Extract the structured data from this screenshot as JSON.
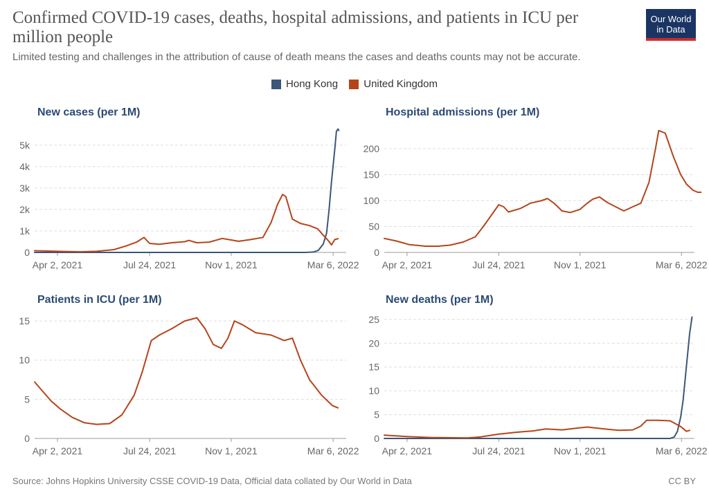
{
  "header": {
    "title": "Confirmed COVID-19 cases, deaths, hospital admissions, and patients in ICU per million people",
    "subtitle": "Limited testing and challenges in the attribution of cause of death means the cases and deaths counts may not be accurate.",
    "logo_line1": "Our World",
    "logo_line2": "in Data"
  },
  "colors": {
    "hong_kong": "#3c5578",
    "united_kingdom": "#b5431a",
    "logo_bg": "#1a3563",
    "logo_bar": "#ce2a2e"
  },
  "legend": [
    {
      "name": "Hong Kong",
      "color": "#3c5578"
    },
    {
      "name": "United Kingdom",
      "color": "#b5431a"
    }
  ],
  "footer": {
    "source": "Source: Johns Hopkins University CSSE COVID-19 Data, Official data collated by Our World in Data",
    "license": "CC BY"
  },
  "chart_data": [
    {
      "type": "line",
      "title": "New cases (per 1M)",
      "x_range": [
        "2021-03-05",
        "2022-03-22"
      ],
      "x_ticks": [
        {
          "date": "2021-04-02",
          "label": "Apr 2, 2021"
        },
        {
          "date": "2021-07-24",
          "label": "Jul 24, 2021"
        },
        {
          "date": "2021-11-01",
          "label": "Nov 1, 2021"
        },
        {
          "date": "2022-03-06",
          "label": "Mar 6, 2022"
        }
      ],
      "ylim": [
        0,
        5800
      ],
      "y_ticks": [
        {
          "value": 0,
          "label": "0"
        },
        {
          "value": 1000,
          "label": "1k"
        },
        {
          "value": 2000,
          "label": "2k"
        },
        {
          "value": 3000,
          "label": "3k"
        },
        {
          "value": 4000,
          "label": "4k"
        },
        {
          "value": 5000,
          "label": "5k"
        }
      ],
      "grid": true,
      "series": [
        {
          "name": "Hong Kong",
          "color": "#3c5578",
          "points": [
            [
              "2021-03-05",
              0
            ],
            [
              "2022-01-31",
              0
            ],
            [
              "2022-02-10",
              20
            ],
            [
              "2022-02-16",
              100
            ],
            [
              "2022-02-22",
              400
            ],
            [
              "2022-02-26",
              900
            ],
            [
              "2022-03-01",
              2000
            ],
            [
              "2022-03-04",
              3300
            ],
            [
              "2022-03-08",
              4800
            ],
            [
              "2022-03-10",
              5650
            ],
            [
              "2022-03-12",
              5750
            ],
            [
              "2022-03-13",
              5680
            ]
          ]
        },
        {
          "name": "United Kingdom",
          "color": "#b5431a",
          "points": [
            [
              "2021-03-05",
              80
            ],
            [
              "2021-04-02",
              50
            ],
            [
              "2021-05-01",
              30
            ],
            [
              "2021-05-20",
              50
            ],
            [
              "2021-06-10",
              130
            ],
            [
              "2021-06-25",
              300
            ],
            [
              "2021-07-08",
              480
            ],
            [
              "2021-07-17",
              700
            ],
            [
              "2021-07-24",
              420
            ],
            [
              "2021-08-05",
              380
            ],
            [
              "2021-08-20",
              450
            ],
            [
              "2021-09-05",
              500
            ],
            [
              "2021-09-10",
              560
            ],
            [
              "2021-09-20",
              450
            ],
            [
              "2021-10-05",
              480
            ],
            [
              "2021-10-21",
              650
            ],
            [
              "2021-11-01",
              580
            ],
            [
              "2021-11-10",
              520
            ],
            [
              "2021-11-25",
              600
            ],
            [
              "2021-12-10",
              700
            ],
            [
              "2021-12-20",
              1400
            ],
            [
              "2021-12-28",
              2250
            ],
            [
              "2022-01-03",
              2700
            ],
            [
              "2022-01-07",
              2600
            ],
            [
              "2022-01-15",
              1550
            ],
            [
              "2022-01-25",
              1350
            ],
            [
              "2022-02-05",
              1250
            ],
            [
              "2022-02-15",
              1100
            ],
            [
              "2022-02-22",
              800
            ],
            [
              "2022-02-28",
              550
            ],
            [
              "2022-03-04",
              350
            ],
            [
              "2022-03-08",
              600
            ],
            [
              "2022-03-12",
              640
            ]
          ]
        }
      ]
    },
    {
      "type": "line",
      "title": "Hospital admissions (per 1M)",
      "x_range": [
        "2021-03-05",
        "2022-03-22"
      ],
      "x_ticks": [
        {
          "date": "2021-04-02",
          "label": "Apr 2, 2021"
        },
        {
          "date": "2021-07-24",
          "label": "Jul 24, 2021"
        },
        {
          "date": "2021-11-01",
          "label": "Nov 1, 2021"
        },
        {
          "date": "2022-03-06",
          "label": "Mar 6, 2022"
        }
      ],
      "ylim": [
        0,
        240
      ],
      "y_ticks": [
        {
          "value": 0,
          "label": "0"
        },
        {
          "value": 50,
          "label": "50"
        },
        {
          "value": 100,
          "label": "100"
        },
        {
          "value": 150,
          "label": "150"
        },
        {
          "value": 200,
          "label": "200"
        }
      ],
      "grid": true,
      "series": [
        {
          "name": "United Kingdom",
          "color": "#b5431a",
          "points": [
            [
              "2021-03-05",
              27
            ],
            [
              "2021-03-20",
              22
            ],
            [
              "2021-04-05",
              15
            ],
            [
              "2021-04-25",
              12
            ],
            [
              "2021-05-10",
              12
            ],
            [
              "2021-05-25",
              14
            ],
            [
              "2021-06-10",
              20
            ],
            [
              "2021-06-25",
              30
            ],
            [
              "2021-07-05",
              50
            ],
            [
              "2021-07-15",
              72
            ],
            [
              "2021-07-24",
              92
            ],
            [
              "2021-07-30",
              88
            ],
            [
              "2021-08-05",
              78
            ],
            [
              "2021-08-20",
              85
            ],
            [
              "2021-09-01",
              95
            ],
            [
              "2021-09-15",
              100
            ],
            [
              "2021-09-22",
              104
            ],
            [
              "2021-09-30",
              95
            ],
            [
              "2021-10-10",
              80
            ],
            [
              "2021-10-20",
              77
            ],
            [
              "2021-11-01",
              83
            ],
            [
              "2021-11-10",
              95
            ],
            [
              "2021-11-17",
              103
            ],
            [
              "2021-11-25",
              107
            ],
            [
              "2021-12-05",
              96
            ],
            [
              "2021-12-15",
              88
            ],
            [
              "2021-12-25",
              80
            ],
            [
              "2022-01-05",
              88
            ],
            [
              "2022-01-15",
              95
            ],
            [
              "2022-01-25",
              135
            ],
            [
              "2022-02-02",
              200
            ],
            [
              "2022-02-06",
              235
            ],
            [
              "2022-02-14",
              230
            ],
            [
              "2022-02-24",
              185
            ],
            [
              "2022-03-05",
              150
            ],
            [
              "2022-03-12",
              132
            ],
            [
              "2022-03-20",
              120
            ],
            [
              "2022-03-26",
              116
            ],
            [
              "2022-03-30",
              116
            ]
          ]
        }
      ]
    },
    {
      "type": "line",
      "title": "Patients in ICU (per 1M)",
      "x_range": [
        "2021-03-05",
        "2022-03-22"
      ],
      "x_ticks": [
        {
          "date": "2021-04-02",
          "label": "Apr 2, 2021"
        },
        {
          "date": "2021-07-24",
          "label": "Jul 24, 2021"
        },
        {
          "date": "2021-11-01",
          "label": "Nov 1, 2021"
        },
        {
          "date": "2022-03-06",
          "label": "Mar 6, 2022"
        }
      ],
      "ylim": [
        0,
        15.8
      ],
      "y_ticks": [
        {
          "value": 0,
          "label": "0"
        },
        {
          "value": 5,
          "label": "5"
        },
        {
          "value": 10,
          "label": "10"
        },
        {
          "value": 15,
          "label": "15"
        }
      ],
      "grid": true,
      "series": [
        {
          "name": "United Kingdom",
          "color": "#b5431a",
          "points": [
            [
              "2021-03-05",
              7.2
            ],
            [
              "2021-03-15",
              6.0
            ],
            [
              "2021-03-25",
              4.8
            ],
            [
              "2021-04-05",
              3.8
            ],
            [
              "2021-04-20",
              2.7
            ],
            [
              "2021-05-05",
              2.0
            ],
            [
              "2021-05-20",
              1.8
            ],
            [
              "2021-06-05",
              1.9
            ],
            [
              "2021-06-20",
              3.0
            ],
            [
              "2021-07-05",
              5.5
            ],
            [
              "2021-07-15",
              8.5
            ],
            [
              "2021-07-26",
              12.5
            ],
            [
              "2021-08-05",
              13.2
            ],
            [
              "2021-08-20",
              14.0
            ],
            [
              "2021-09-05",
              15.0
            ],
            [
              "2021-09-20",
              15.4
            ],
            [
              "2021-09-30",
              14.0
            ],
            [
              "2021-10-10",
              12.0
            ],
            [
              "2021-10-20",
              11.5
            ],
            [
              "2021-10-28",
              12.8
            ],
            [
              "2021-11-05",
              15.0
            ],
            [
              "2021-11-15",
              14.5
            ],
            [
              "2021-12-01",
              13.5
            ],
            [
              "2021-12-20",
              13.2
            ],
            [
              "2022-01-05",
              12.5
            ],
            [
              "2022-01-15",
              12.8
            ],
            [
              "2022-01-25",
              10.0
            ],
            [
              "2022-02-05",
              7.5
            ],
            [
              "2022-02-20",
              5.5
            ],
            [
              "2022-03-05",
              4.2
            ],
            [
              "2022-03-12",
              3.9
            ]
          ]
        }
      ]
    },
    {
      "type": "line",
      "title": "New deaths (per 1M)",
      "x_range": [
        "2021-03-05",
        "2022-03-22"
      ],
      "x_ticks": [
        {
          "date": "2021-04-02",
          "label": "Apr 2, 2021"
        },
        {
          "date": "2021-07-24",
          "label": "Jul 24, 2021"
        },
        {
          "date": "2021-11-01",
          "label": "Nov 1, 2021"
        },
        {
          "date": "2022-03-06",
          "label": "Mar 6, 2022"
        }
      ],
      "ylim": [
        0,
        26
      ],
      "y_ticks": [
        {
          "value": 0,
          "label": "0"
        },
        {
          "value": 5,
          "label": "5"
        },
        {
          "value": 10,
          "label": "10"
        },
        {
          "value": 15,
          "label": "15"
        },
        {
          "value": 20,
          "label": "20"
        },
        {
          "value": 25,
          "label": "25"
        }
      ],
      "grid": true,
      "series": [
        {
          "name": "Hong Kong",
          "color": "#3c5578",
          "points": [
            [
              "2021-03-05",
              0
            ],
            [
              "2022-02-20",
              0
            ],
            [
              "2022-02-25",
              0.3
            ],
            [
              "2022-03-01",
              1.5
            ],
            [
              "2022-03-05",
              4.5
            ],
            [
              "2022-03-08",
              8
            ],
            [
              "2022-03-12",
              15
            ],
            [
              "2022-03-16",
              22
            ],
            [
              "2022-03-19",
              25.5
            ]
          ]
        },
        {
          "name": "United Kingdom",
          "color": "#b5431a",
          "points": [
            [
              "2021-03-05",
              0.7
            ],
            [
              "2021-04-02",
              0.4
            ],
            [
              "2021-05-01",
              0.2
            ],
            [
              "2021-06-15",
              0.1
            ],
            [
              "2021-07-01",
              0.3
            ],
            [
              "2021-07-24",
              0.9
            ],
            [
              "2021-08-15",
              1.3
            ],
            [
              "2021-09-05",
              1.6
            ],
            [
              "2021-09-20",
              2.0
            ],
            [
              "2021-10-10",
              1.8
            ],
            [
              "2021-10-25",
              2.1
            ],
            [
              "2021-11-10",
              2.4
            ],
            [
              "2021-12-01",
              2.0
            ],
            [
              "2021-12-20",
              1.7
            ],
            [
              "2022-01-05",
              1.8
            ],
            [
              "2022-01-15",
              2.6
            ],
            [
              "2022-01-22",
              3.8
            ],
            [
              "2022-02-05",
              3.8
            ],
            [
              "2022-02-20",
              3.7
            ],
            [
              "2022-03-05",
              2.5
            ],
            [
              "2022-03-12",
              1.5
            ],
            [
              "2022-03-16",
              1.7
            ]
          ]
        }
      ]
    }
  ]
}
